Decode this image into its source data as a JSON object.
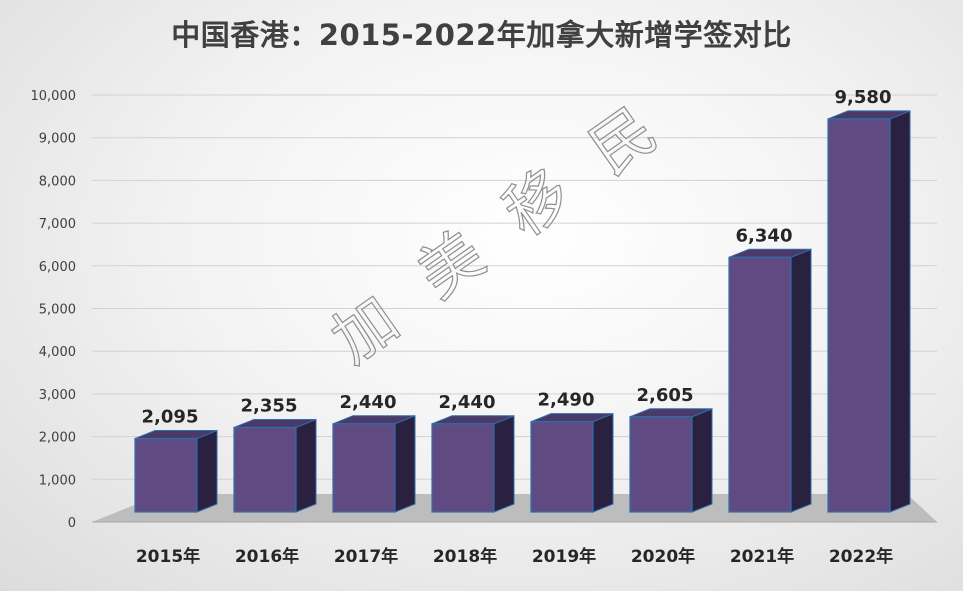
{
  "chart_data": {
    "type": "bar",
    "title": "中国香港：2015-2022年加拿大新增学签对比",
    "categories": [
      "2015年",
      "2016年",
      "2017年",
      "2018年",
      "2019年",
      "2020年",
      "2021年",
      "2022年"
    ],
    "values": [
      2095,
      2355,
      2440,
      2440,
      2490,
      2605,
      6340,
      9580
    ],
    "data_labels": [
      "2,095",
      "2,355",
      "2,440",
      "2,440",
      "2,490",
      "2,605",
      "6,340",
      "9,580"
    ],
    "yticks": [
      "0",
      "1,000",
      "2,000",
      "3,000",
      "4,000",
      "5,000",
      "6,000",
      "7,000",
      "8,000",
      "9,000",
      "10,000"
    ],
    "ylim": [
      0,
      10000
    ],
    "grid": true,
    "legend": "none",
    "xlabel": "",
    "ylabel": "",
    "bar_color": "#5f4b82",
    "bar_side_color": "#2a2040",
    "bar_top_color": "#4a3a6a",
    "bar_edge_color": "#2f6ea8"
  },
  "watermark": {
    "chars": [
      "加",
      "美",
      "移",
      "民"
    ]
  }
}
